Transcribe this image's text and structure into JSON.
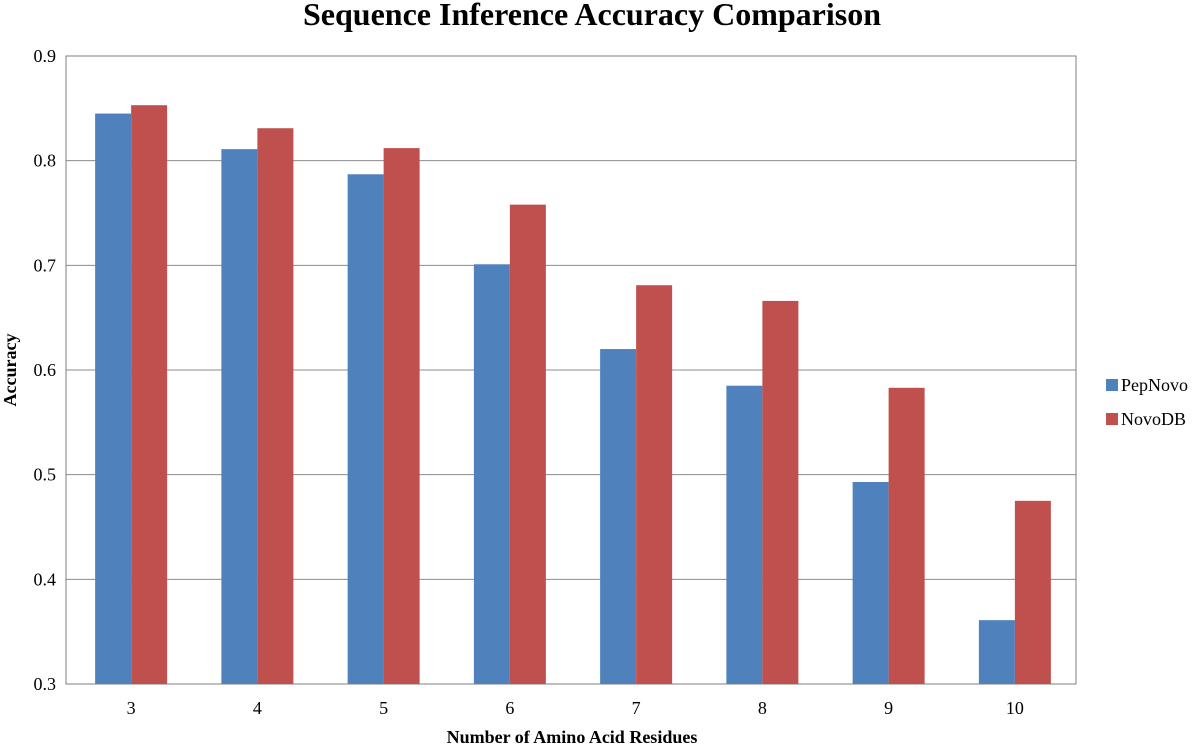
{
  "chart_data": {
    "type": "bar",
    "title": "Sequence Inference Accuracy Comparison",
    "xlabel": "Number of Amino Acid Residues",
    "ylabel": "Accuracy",
    "categories": [
      "3",
      "4",
      "5",
      "6",
      "7",
      "8",
      "9",
      "10"
    ],
    "ylim": [
      0.3,
      0.9
    ],
    "yticks": [
      "0.3",
      "0.4",
      "0.5",
      "0.6",
      "0.7",
      "0.8",
      "0.9"
    ],
    "grid": true,
    "legend_position": "right",
    "series": [
      {
        "name": "PepNovo",
        "color": "#4F81BD",
        "values": [
          0.845,
          0.811,
          0.787,
          0.701,
          0.62,
          0.585,
          0.493,
          0.361
        ]
      },
      {
        "name": "NovoDB",
        "color": "#C0504D",
        "values": [
          0.853,
          0.831,
          0.812,
          0.758,
          0.681,
          0.666,
          0.583,
          0.475
        ]
      }
    ]
  }
}
